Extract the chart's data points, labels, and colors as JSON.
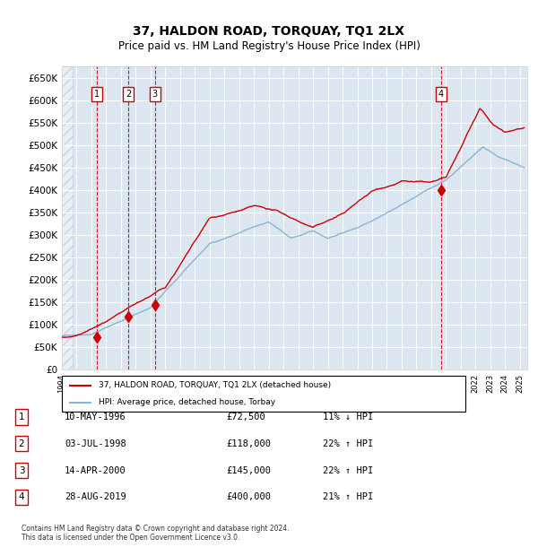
{
  "title": "37, HALDON ROAD, TORQUAY, TQ1 2LX",
  "subtitle": "Price paid vs. HM Land Registry's House Price Index (HPI)",
  "ylabel": "",
  "ylim": [
    0,
    675000
  ],
  "yticks": [
    0,
    50000,
    100000,
    150000,
    200000,
    250000,
    300000,
    350000,
    400000,
    450000,
    500000,
    550000,
    600000,
    650000
  ],
  "ytick_labels": [
    "£0",
    "£50K",
    "£100K",
    "£150K",
    "£200K",
    "£250K",
    "£300K",
    "£350K",
    "£400K",
    "£450K",
    "£500K",
    "£550K",
    "£600K",
    "£650K"
  ],
  "xlim_start": 1994.0,
  "xlim_end": 2025.5,
  "background_color": "#dce6f1",
  "plot_bg_color": "#dce6f1",
  "hpi_color": "#8ab4d4",
  "price_color": "#cc0000",
  "sale_marker_color": "#cc0000",
  "vline_color": "#cc0000",
  "grid_color": "#ffffff",
  "sale_points": [
    {
      "year": 1996.36,
      "price": 72500,
      "label": "1"
    },
    {
      "year": 1998.5,
      "price": 118000,
      "label": "2"
    },
    {
      "year": 2000.29,
      "price": 145000,
      "label": "3"
    },
    {
      "year": 2019.65,
      "price": 400000,
      "label": "4"
    }
  ],
  "legend_entries": [
    "37, HALDON ROAD, TORQUAY, TQ1 2LX (detached house)",
    "HPI: Average price, detached house, Torbay"
  ],
  "table_rows": [
    {
      "num": "1",
      "date": "10-MAY-1996",
      "price": "£72,500",
      "change": "11% ↓ HPI"
    },
    {
      "num": "2",
      "date": "03-JUL-1998",
      "price": "£118,000",
      "change": "22% ↑ HPI"
    },
    {
      "num": "3",
      "date": "14-APR-2000",
      "price": "£145,000",
      "change": "22% ↑ HPI"
    },
    {
      "num": "4",
      "date": "28-AUG-2019",
      "price": "£400,000",
      "change": "21% ↑ HPI"
    }
  ],
  "footer": "Contains HM Land Registry data © Crown copyright and database right 2024.\nThis data is licensed under the Open Government Licence v3.0."
}
